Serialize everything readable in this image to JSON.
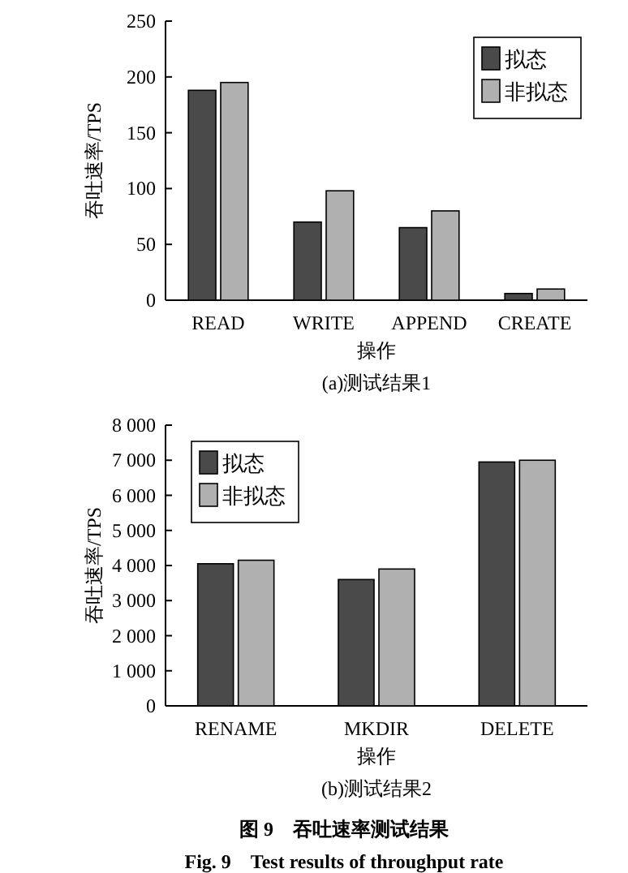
{
  "chart_data": [
    {
      "type": "bar",
      "categories": [
        "READ",
        "WRITE",
        "APPEND",
        "CREATE"
      ],
      "xlabel": "操作",
      "ylabel": "吞吐速率/TPS",
      "ylim": [
        0,
        250
      ],
      "yticks": [
        0,
        50,
        100,
        150,
        200,
        250
      ],
      "legend": "top right",
      "series": [
        {
          "name": "拟态",
          "color": "#4a4a4a",
          "values": [
            188,
            70,
            65,
            6
          ]
        },
        {
          "name": "非拟态",
          "color": "#b0b0b0",
          "values": [
            195,
            98,
            80,
            10
          ]
        }
      ],
      "annotations": [
        "(a)测试结果1"
      ]
    },
    {
      "type": "bar",
      "categories": [
        "RENAME",
        "MKDIR",
        "DELETE"
      ],
      "xlabel": "操作",
      "ylabel": "吞吐速率/TPS",
      "ylim": [
        0,
        8000
      ],
      "yticks": [
        {
          "value": 0,
          "label": "0"
        },
        {
          "value": 1000,
          "label": "1 000"
        },
        {
          "value": 2000,
          "label": "2 000"
        },
        {
          "value": 3000,
          "label": "3 000"
        },
        {
          "value": 4000,
          "label": "4 000"
        },
        {
          "value": 5000,
          "label": "5 000"
        },
        {
          "value": 6000,
          "label": "6 000"
        },
        {
          "value": 7000,
          "label": "7 000"
        },
        {
          "value": 8000,
          "label": "8 000"
        }
      ],
      "legend": "top left",
      "series": [
        {
          "name": "拟态",
          "color": "#4a4a4a",
          "values": [
            4050,
            3600,
            6950
          ]
        },
        {
          "name": "非拟态",
          "color": "#b0b0b0",
          "values": [
            4150,
            3900,
            7000
          ]
        }
      ],
      "annotations": [
        "(b)测试结果2",
        "图 9　吞吐速率测试结果",
        "Fig. 9　Test results of throughput rate"
      ]
    }
  ]
}
